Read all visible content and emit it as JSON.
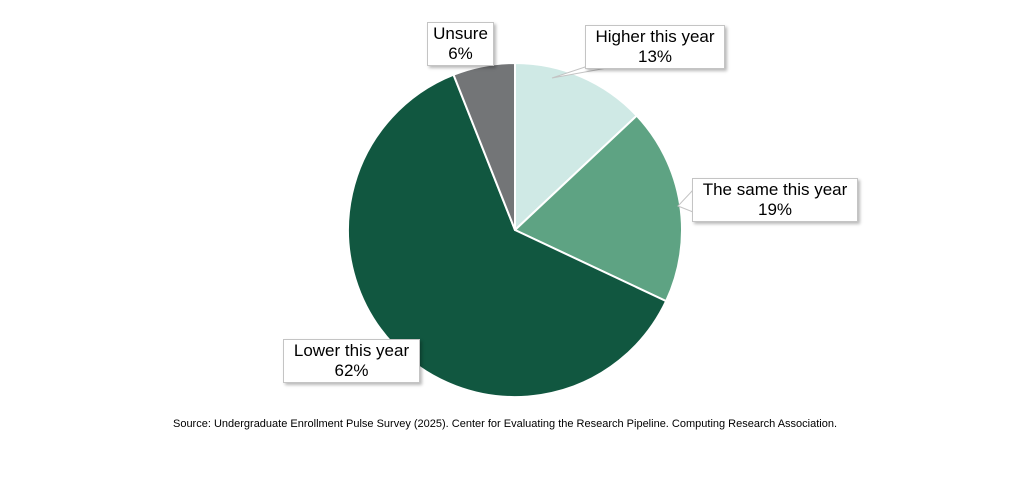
{
  "chart_data": {
    "type": "pie",
    "title": "",
    "categories": [
      "Higher this year",
      "The same this year",
      "Lower this year",
      "Unsure"
    ],
    "values": [
      13,
      19,
      62,
      6
    ],
    "slices": [
      {
        "label": "Higher this year",
        "value": 13,
        "pct_label": "13%",
        "color": "#cfe9e5"
      },
      {
        "label": "The same this year",
        "value": 19,
        "pct_label": "19%",
        "color": "#5ea383"
      },
      {
        "label": "Lower this year",
        "value": 62,
        "pct_label": "62%",
        "color": "#115740"
      },
      {
        "label": "Unsure",
        "value": 6,
        "pct_label": "6%",
        "color": "#737577"
      }
    ],
    "start_angle_deg": 0,
    "direction": "clockwise",
    "slice_border_color": "#ffffff",
    "legend_position": "none",
    "labels_style": "callout-boxes"
  },
  "source_note": "Source: Undergraduate Enrollment Pulse Survey (2025). Center for Evaluating the Research Pipeline. Computing Research Association."
}
